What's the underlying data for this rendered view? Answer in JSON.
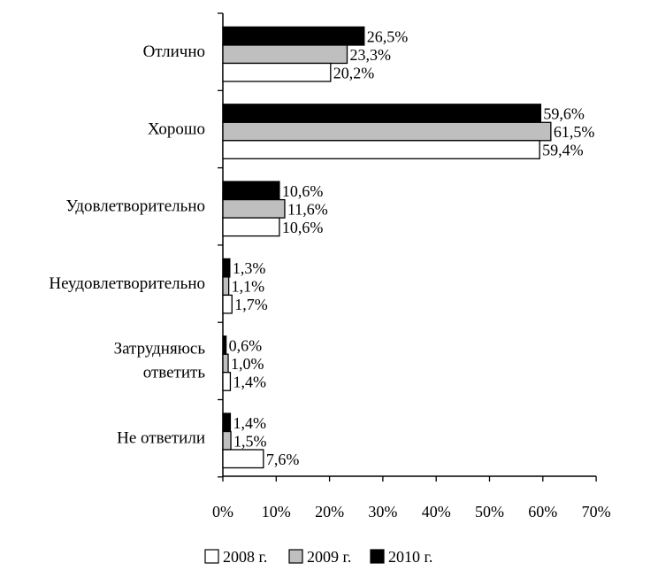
{
  "chart_data": {
    "type": "bar",
    "orientation": "horizontal",
    "categories": [
      [
        "Отлично"
      ],
      [
        "Хорошо"
      ],
      [
        "Удовлетворительно"
      ],
      [
        "Неудовлетворительно"
      ],
      [
        "Затрудняюсь",
        "ответить"
      ],
      [
        "Не ответили"
      ]
    ],
    "series": [
      {
        "name": "2010 г.",
        "color": "#000000",
        "values": [
          26.5,
          59.6,
          10.6,
          1.3,
          0.6,
          1.4
        ],
        "labels": [
          "26,5%",
          "59,6%",
          "10,6%",
          "1,3%",
          "0,6%",
          "1,4%"
        ]
      },
      {
        "name": "2009 г.",
        "color": "#bfbfbf",
        "values": [
          23.3,
          61.5,
          11.6,
          1.1,
          1.0,
          1.5
        ],
        "labels": [
          "23,3%",
          "61,5%",
          "11,6%",
          "1,1%",
          "1,0%",
          "1,5%"
        ]
      },
      {
        "name": "2008 г.",
        "color": "#ffffff",
        "values": [
          20.2,
          59.4,
          10.6,
          1.7,
          1.4,
          7.6
        ],
        "labels": [
          "20,2%",
          "59,4%",
          "10,6%",
          "1,7%",
          "1,4%",
          "7,6%"
        ]
      }
    ],
    "xlim": [
      0,
      70
    ],
    "xticks": [
      0,
      10,
      20,
      30,
      40,
      50,
      60,
      70
    ],
    "xtick_labels": [
      "0%",
      "10%",
      "20%",
      "30%",
      "40%",
      "50%",
      "60%",
      "70%"
    ],
    "legend": {
      "placement": "bottom",
      "entries": [
        {
          "name": "2008 г.",
          "color": "#ffffff"
        },
        {
          "name": "2009 г.",
          "color": "#bfbfbf"
        },
        {
          "name": "2010 г.",
          "color": "#000000"
        }
      ]
    },
    "grid": false
  }
}
